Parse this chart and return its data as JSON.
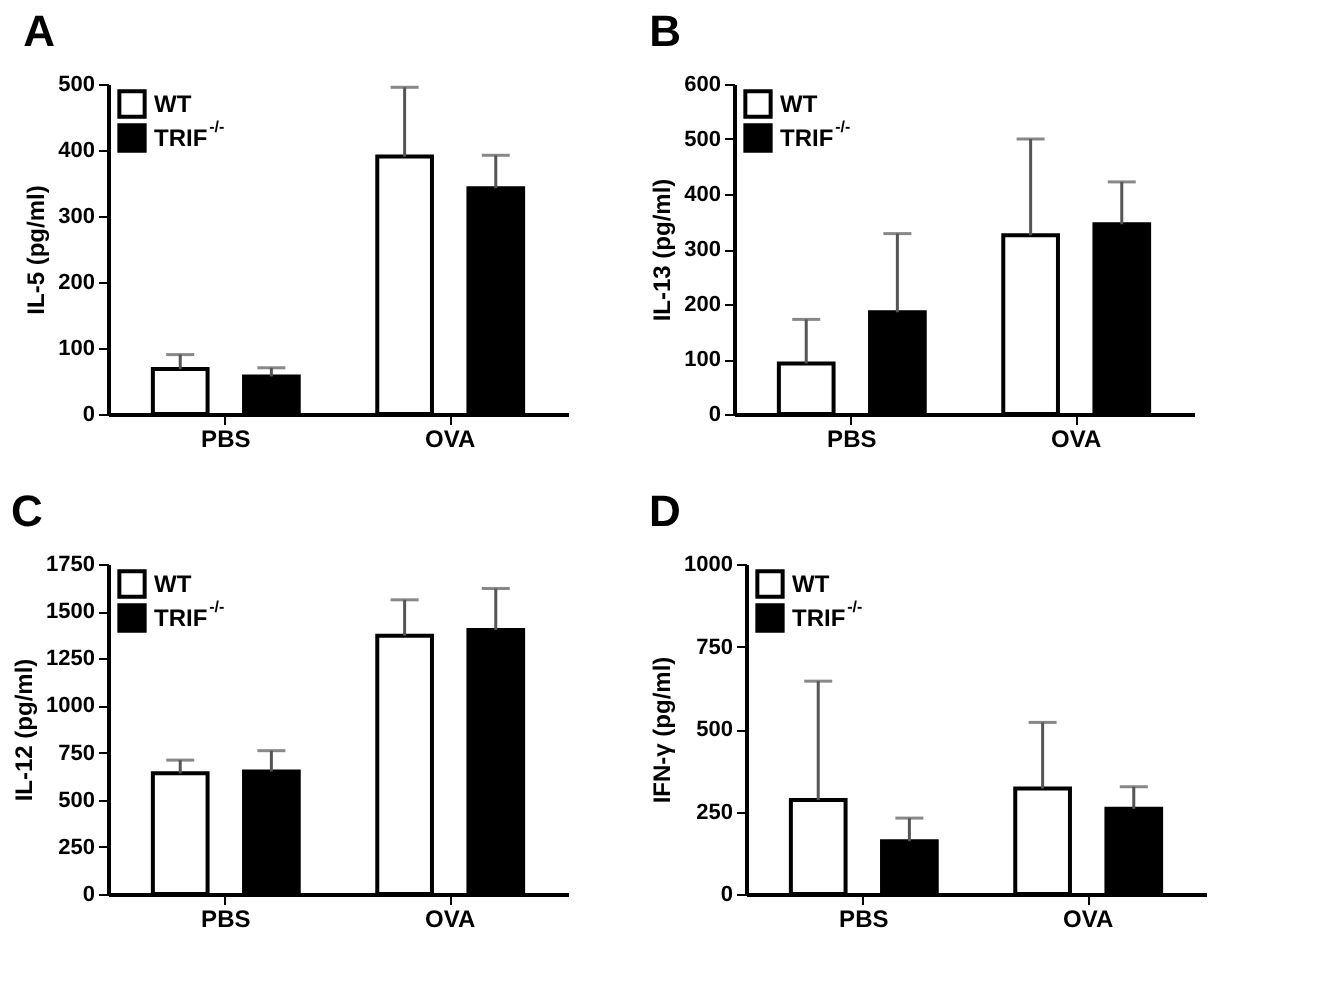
{
  "chart_data": [
    {
      "type": "bar",
      "title": "A",
      "ylabel": "IL-5 (pg/ml)",
      "categories": [
        "PBS",
        "OVA"
      ],
      "ylim": [
        0,
        500
      ],
      "yticks": [
        0,
        100,
        200,
        300,
        400,
        500
      ],
      "legend": "top left",
      "series": [
        {
          "name": "WT",
          "color": "#ffffff",
          "values": [
            68,
            390
          ],
          "errors": [
            [
              68,
              90
            ],
            [
              390,
              495
            ]
          ]
        },
        {
          "name": "TRIF$^{-/-}$",
          "color": "#000000",
          "values": [
            57,
            342
          ],
          "errors": [
            [
              57,
              70
            ],
            [
              342,
              392
            ]
          ]
        }
      ]
    },
    {
      "type": "bar",
      "title": "B",
      "ylabel": "IL-13 (pg/ml)",
      "categories": [
        "PBS",
        "OVA"
      ],
      "ylim": [
        0,
        600
      ],
      "yticks": [
        0,
        100,
        200,
        300,
        400,
        500,
        600
      ],
      "legend": "top left",
      "series": [
        {
          "name": "WT",
          "color": "#ffffff",
          "values": [
            92,
            325
          ],
          "errors": [
            [
              92,
              172
            ],
            [
              325,
              500
            ]
          ]
        },
        {
          "name": "TRIF$^{-/-}$",
          "color": "#000000",
          "values": [
            185,
            345
          ],
          "errors": [
            [
              185,
              328
            ],
            [
              345,
              422
            ]
          ]
        }
      ]
    },
    {
      "type": "bar",
      "title": "C",
      "ylabel": "IL-12 (pg/ml)",
      "categories": [
        "PBS",
        "OVA"
      ],
      "ylim": [
        0,
        1750
      ],
      "yticks": [
        0,
        250,
        500,
        750,
        1000,
        1250,
        1500,
        1750
      ],
      "legend": "top left",
      "series": [
        {
          "name": "WT",
          "color": "#ffffff",
          "values": [
            640,
            1370
          ],
          "errors": [
            [
              640,
              710
            ],
            [
              1370,
              1560
            ]
          ]
        },
        {
          "name": "TRIF$^{-/-}$",
          "color": "#000000",
          "values": [
            650,
            1400
          ],
          "errors": [
            [
              650,
              760
            ],
            [
              1400,
              1620
            ]
          ]
        }
      ]
    },
    {
      "type": "bar",
      "title": "D",
      "ylabel": "IFN-γ (pg/ml)",
      "categories": [
        "PBS",
        "OVA"
      ],
      "ylim": [
        0,
        1000
      ],
      "yticks": [
        0,
        250,
        500,
        750,
        1000
      ],
      "legend": "top left",
      "series": [
        {
          "name": "WT",
          "color": "#ffffff",
          "values": [
            285,
            320
          ],
          "errors": [
            [
              285,
              645
            ],
            [
              320,
              520
            ]
          ]
        },
        {
          "name": "TRIF$^{-/-}$",
          "color": "#000000",
          "values": [
            160,
            258
          ],
          "errors": [
            [
              160,
              230
            ],
            [
              258,
              325
            ]
          ]
        }
      ]
    }
  ]
}
